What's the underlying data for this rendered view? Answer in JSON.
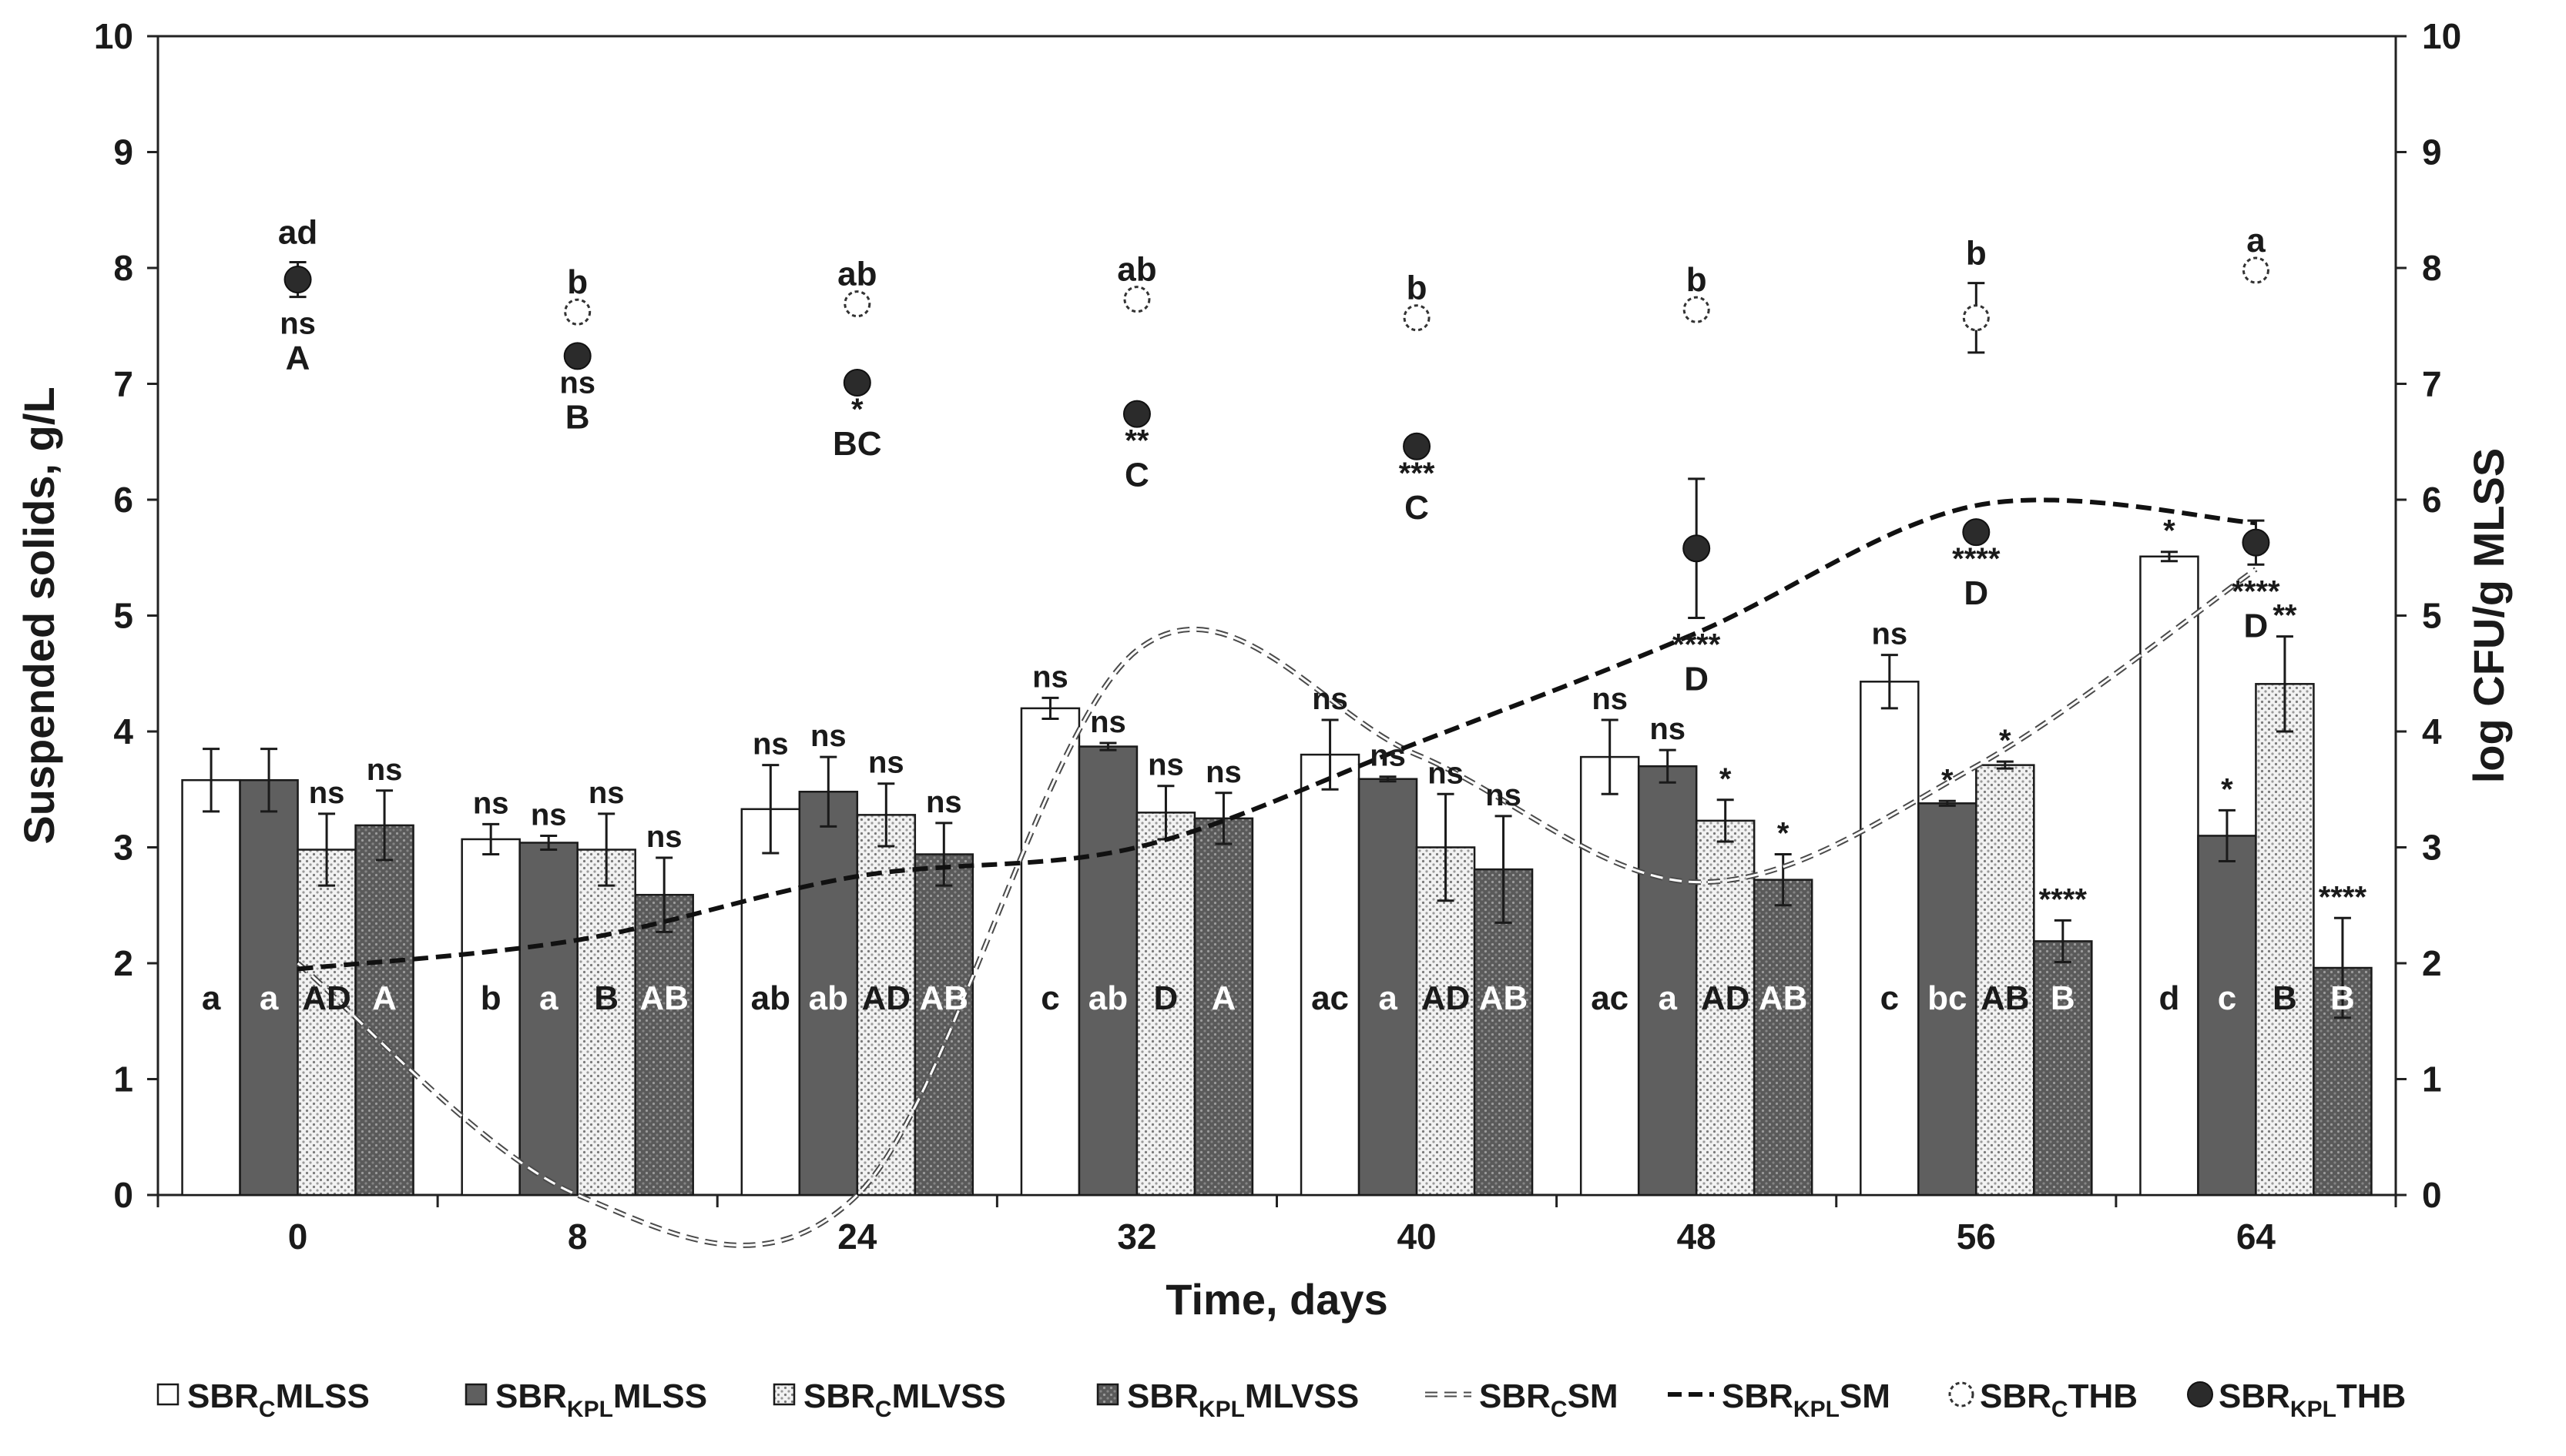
{
  "chart_data": {
    "type": "bar",
    "xlabel": "Time, days",
    "ylabel": "Suspended solids, g/L",
    "y2label": "log CFU/g MLSS",
    "ylim": [
      0,
      10
    ],
    "y2lim": [
      0,
      10
    ],
    "yticks": [
      "0",
      "1",
      "2",
      "3",
      "4",
      "5",
      "6",
      "7",
      "8",
      "9",
      "10"
    ],
    "categories": [
      "0",
      "8",
      "24",
      "32",
      "40",
      "48",
      "56",
      "64"
    ],
    "bar_series": [
      {
        "key": "c_mlss",
        "prefix": "SBR",
        "sub": "C",
        "suffix": "MLSS",
        "fill": "#ffffff",
        "pattern": "none",
        "values": [
          3.58,
          3.07,
          3.33,
          4.2,
          3.8,
          3.78,
          4.43,
          5.51
        ],
        "errors": [
          0.27,
          0.13,
          0.38,
          0.09,
          0.3,
          0.32,
          0.23,
          0.04
        ],
        "sig": [
          "",
          "ns",
          "ns",
          "ns",
          "ns",
          "ns",
          "ns",
          "*"
        ],
        "group": [
          "a",
          "b",
          "ab",
          "c",
          "ac",
          "ac",
          "c",
          "d"
        ],
        "group_color": "#1a1a1a"
      },
      {
        "key": "kpl_mlss",
        "prefix": "SBR",
        "sub": "KPL",
        "suffix": "MLSS",
        "fill": "#5f5f5f",
        "pattern": "none",
        "values": [
          3.58,
          3.04,
          3.48,
          3.87,
          3.59,
          3.7,
          3.38,
          3.1
        ],
        "errors": [
          0.27,
          0.06,
          0.3,
          0.03,
          0.02,
          0.14,
          0.02,
          0.22
        ],
        "sig": [
          "",
          "ns",
          "ns",
          "ns",
          "ns",
          "ns",
          "*",
          "*"
        ],
        "group": [
          "a",
          "a",
          "ab",
          "ab",
          "a",
          "a",
          "bc",
          "c"
        ],
        "group_color": "#ffffff"
      },
      {
        "key": "c_mlvss",
        "prefix": "SBR",
        "sub": "C",
        "suffix": "MLVSS",
        "fill": "#ececec",
        "pattern": "dots-dark",
        "values": [
          2.98,
          2.98,
          3.28,
          3.3,
          3.0,
          3.23,
          3.71,
          4.41
        ],
        "errors": [
          0.31,
          0.31,
          0.27,
          0.23,
          0.46,
          0.18,
          0.03,
          0.41
        ],
        "sig": [
          "ns",
          "ns",
          "ns",
          "ns",
          "ns",
          "*",
          "*",
          "**"
        ],
        "group": [
          "AD",
          "B",
          "AD",
          "D",
          "AD",
          "AD",
          "AB",
          "B"
        ],
        "group_color": "#1a1a1a"
      },
      {
        "key": "kpl_mlvss",
        "prefix": "SBR",
        "sub": "KPL",
        "suffix": "MLVSS",
        "fill": "#606060",
        "pattern": "dots-light",
        "values": [
          3.19,
          2.59,
          2.94,
          3.25,
          2.81,
          2.72,
          2.19,
          1.96
        ],
        "errors": [
          0.3,
          0.32,
          0.27,
          0.22,
          0.46,
          0.22,
          0.18,
          0.43
        ],
        "sig": [
          "ns",
          "ns",
          "ns",
          "ns",
          "ns",
          "*",
          "****",
          "****"
        ],
        "group": [
          "A",
          "AB",
          "AB",
          "A",
          "AB",
          "AB",
          "B",
          "B"
        ],
        "group_color": "#ffffff"
      }
    ],
    "thb_series": [
      {
        "key": "c_thb",
        "prefix": "SBR",
        "sub": "C",
        "suffix": "THB",
        "style": "open-dashed",
        "values": [
          null,
          7.62,
          7.69,
          7.73,
          7.57,
          7.64,
          7.57,
          7.98
        ],
        "errors": [
          null,
          0,
          0,
          0,
          0,
          0,
          0.3,
          0
        ],
        "labels": [
          "",
          "b",
          "ab",
          "ab",
          "b",
          "b",
          "b",
          "a"
        ]
      },
      {
        "key": "kpl_thb",
        "prefix": "SBR",
        "sub": "KPL",
        "suffix": "THB",
        "style": "filled",
        "values": [
          7.9,
          7.24,
          7.01,
          6.74,
          6.46,
          5.58,
          5.72,
          5.63
        ],
        "errors": [
          0.15,
          0,
          0,
          0,
          0,
          0.6,
          0,
          0.19
        ],
        "top_labels": [
          "ad",
          "",
          "",
          "",
          "",
          "",
          "",
          ""
        ],
        "sig": [
          "ns",
          "ns",
          "*",
          "**",
          "***",
          "****",
          "****",
          "****"
        ],
        "group": [
          "A",
          "B",
          "BC",
          "C",
          "C",
          "D",
          "D",
          "D"
        ]
      }
    ],
    "sm_series": [
      {
        "key": "c_sm",
        "prefix": "SBR",
        "sub": "C",
        "suffix": "SM",
        "style": "dashed-light",
        "x": [
          0,
          8,
          24,
          32,
          40,
          48,
          56,
          64
        ],
        "values": [
          2.0,
          0.0,
          0.0,
          4.7,
          3.8,
          2.7,
          3.7,
          5.4
        ]
      },
      {
        "key": "kpl_sm",
        "prefix": "SBR",
        "sub": "KPL",
        "suffix": "SM",
        "style": "dashed-dark",
        "x": [
          0,
          8,
          24,
          32,
          40,
          48,
          56,
          64
        ],
        "values": [
          1.95,
          2.2,
          2.75,
          3.0,
          3.9,
          4.85,
          5.95,
          5.8
        ]
      }
    ],
    "legend": [
      {
        "key": "c_mlss",
        "type": "bar"
      },
      {
        "key": "kpl_mlss",
        "type": "bar"
      },
      {
        "key": "c_mlvss",
        "type": "bar"
      },
      {
        "key": "kpl_mlvss",
        "type": "bar"
      },
      {
        "key": "c_sm",
        "type": "line"
      },
      {
        "key": "kpl_sm",
        "type": "line"
      },
      {
        "key": "c_thb",
        "type": "marker"
      },
      {
        "key": "kpl_thb",
        "type": "marker"
      }
    ],
    "legend_position": "bottom"
  }
}
